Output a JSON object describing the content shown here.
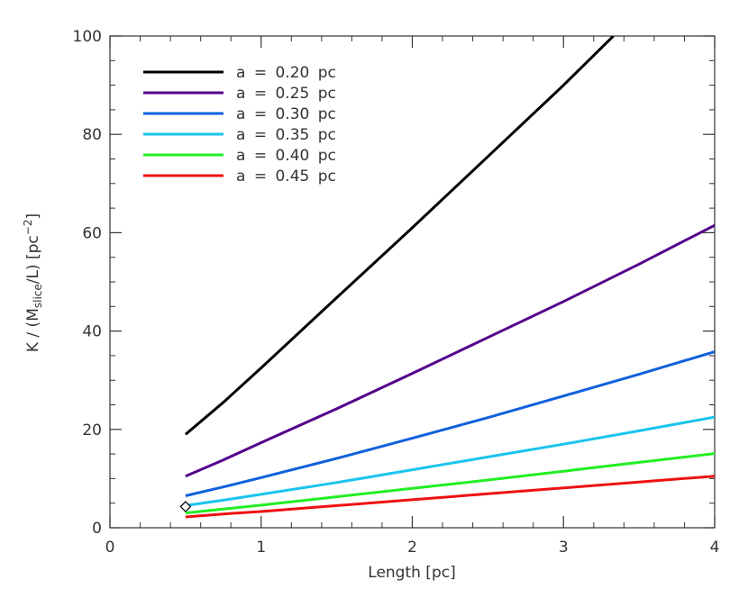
{
  "chart_data": {
    "type": "line",
    "xlabel": "Length [pc]",
    "ylabel": {
      "prefix": "K / (M",
      "subscript": "slice",
      "middle": "/L) [pc",
      "superscript": "−2",
      "suffix": "]"
    },
    "xlim": [
      0,
      4
    ],
    "ylim": [
      0,
      100
    ],
    "x_ticks": [
      0,
      1,
      2,
      3,
      4
    ],
    "x_tick_labels": [
      "0",
      "1",
      "2",
      "3",
      "4"
    ],
    "y_ticks": [
      0,
      20,
      40,
      60,
      80,
      100
    ],
    "y_tick_labels": [
      "0",
      "20",
      "40",
      "60",
      "80",
      "100"
    ],
    "x_minor_step": 0.2,
    "y_minor_step": 5,
    "grid": false,
    "legend_position": "top-left",
    "series": [
      {
        "name": "a = 0.20 pc",
        "color": "#000000",
        "x": [
          0.5,
          0.75,
          1.0,
          1.5,
          2.0,
          2.5,
          3.0,
          3.33
        ],
        "y": [
          19.0,
          25.5,
          32.5,
          46.8,
          61.0,
          75.5,
          90.0,
          100.0
        ]
      },
      {
        "name": "a = 0.25 pc",
        "color": "#55008b",
        "x": [
          0.5,
          0.75,
          1.0,
          1.5,
          2.0,
          2.5,
          3.0,
          3.5,
          4.0
        ],
        "y": [
          10.5,
          13.8,
          17.3,
          24.2,
          31.4,
          38.7,
          46.0,
          53.6,
          61.5
        ]
      },
      {
        "name": "a = 0.30 pc",
        "color": "#1060dd",
        "x": [
          0.5,
          0.75,
          1.0,
          1.5,
          2.0,
          2.5,
          3.0,
          3.5,
          4.0
        ],
        "y": [
          6.5,
          8.3,
          10.2,
          14.1,
          18.2,
          22.4,
          26.8,
          31.2,
          35.8
        ]
      },
      {
        "name": "a = 0.35 pc",
        "color": "#1ac4ee",
        "x": [
          0.5,
          0.75,
          1.0,
          1.5,
          2.0,
          2.5,
          3.0,
          3.5,
          4.0
        ],
        "y": [
          4.5,
          5.6,
          6.8,
          9.2,
          11.8,
          14.4,
          17.0,
          19.7,
          22.5
        ]
      },
      {
        "name": "a = 0.40 pc",
        "color": "#22ee22",
        "x": [
          0.5,
          0.75,
          1.0,
          1.5,
          2.0,
          2.5,
          3.0,
          3.5,
          4.0
        ],
        "y": [
          3.0,
          3.8,
          4.6,
          6.3,
          8.0,
          9.7,
          11.5,
          13.3,
          15.1
        ]
      },
      {
        "name": "a = 0.45 pc",
        "color": "#ee1111",
        "x": [
          0.5,
          0.75,
          1.0,
          1.5,
          2.0,
          2.5,
          3.0,
          3.5,
          4.0
        ],
        "y": [
          2.2,
          2.8,
          3.3,
          4.5,
          5.7,
          6.9,
          8.1,
          9.3,
          10.5
        ]
      }
    ],
    "markers": [
      {
        "shape": "diamond",
        "x": 0.5,
        "y": 4.3,
        "color": "#000000"
      }
    ]
  }
}
